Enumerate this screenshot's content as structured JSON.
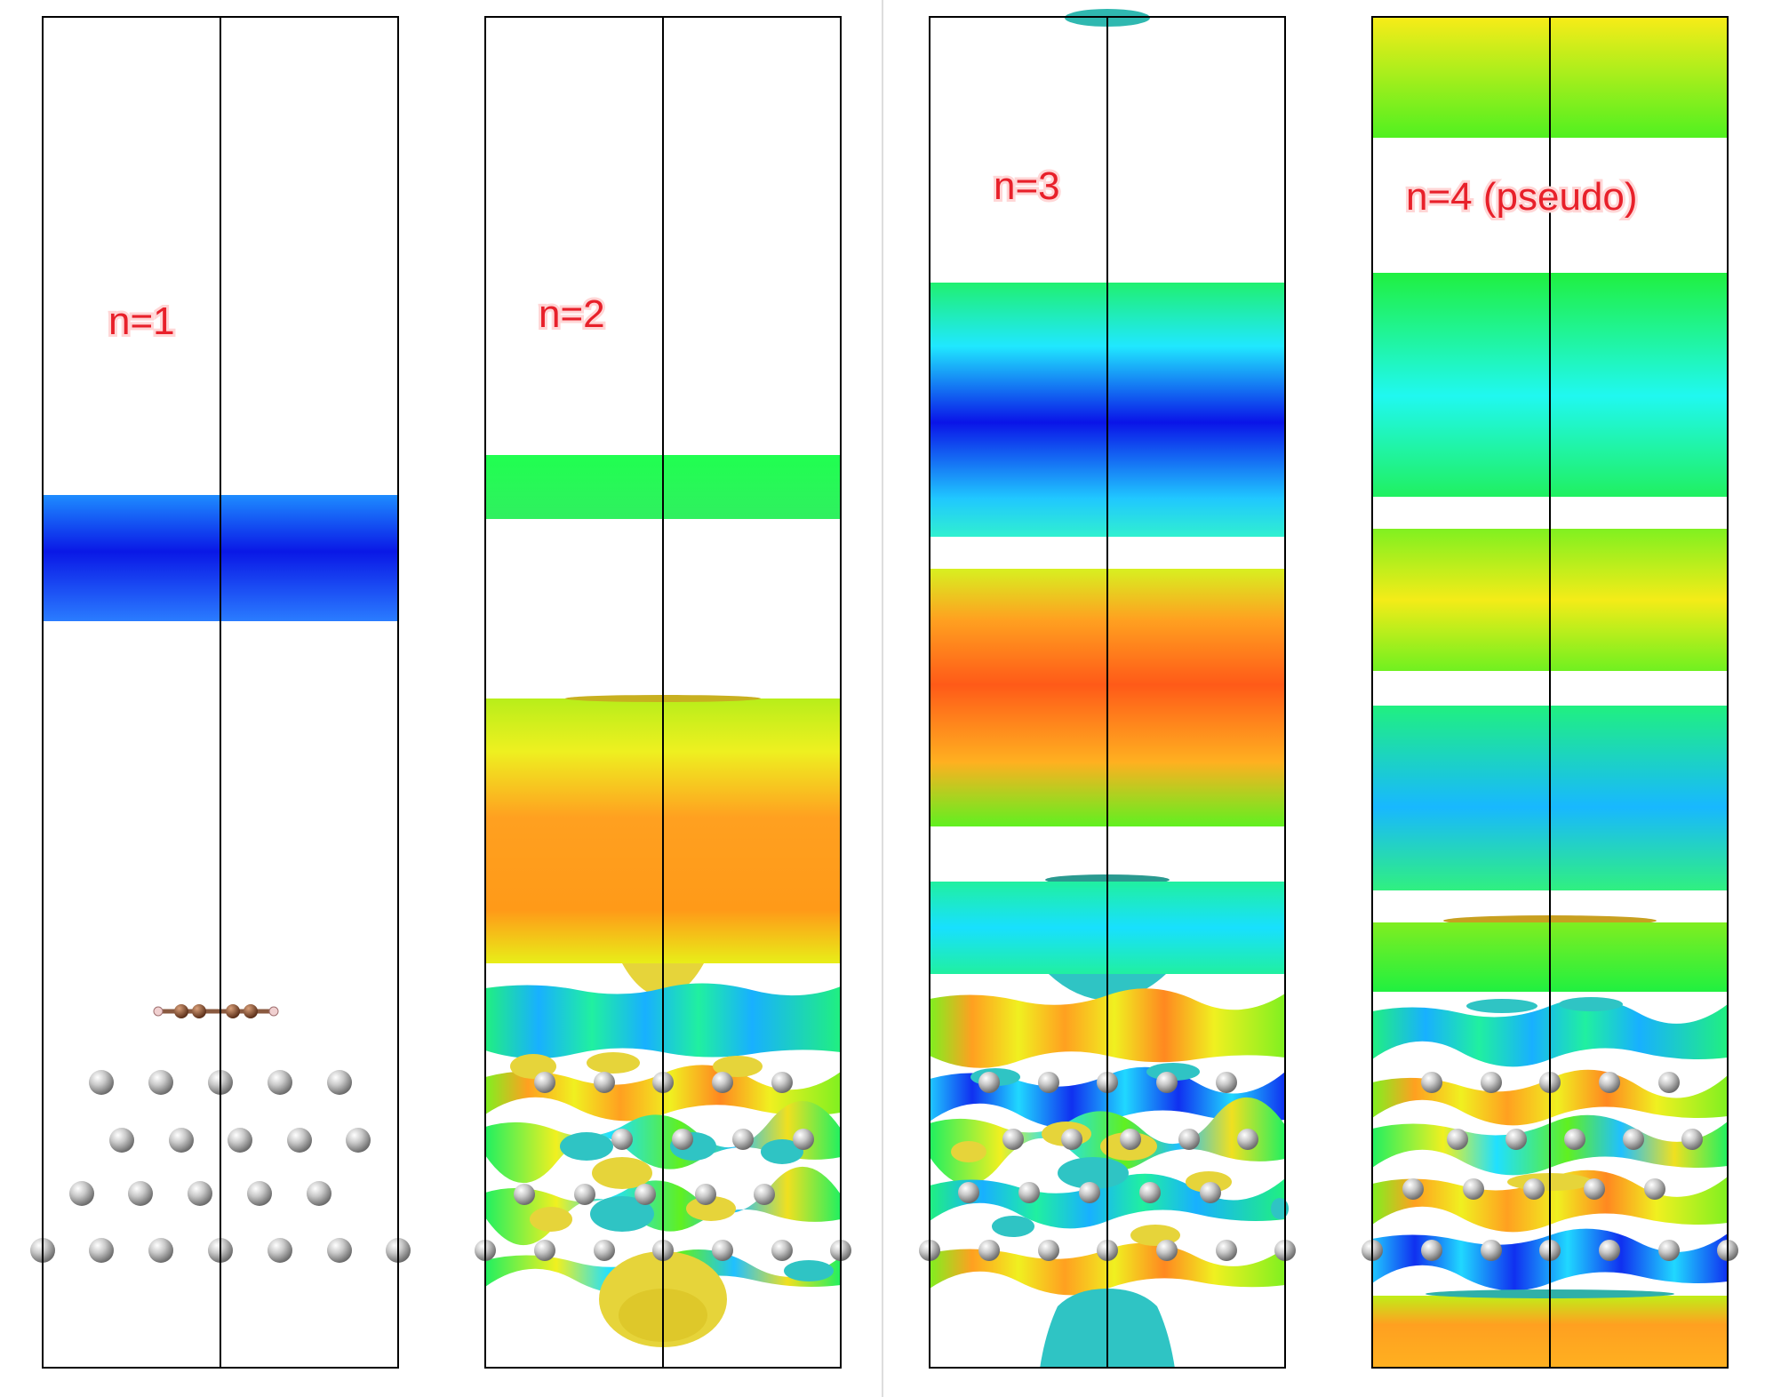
{
  "panels": [
    {
      "label": "n=1"
    },
    {
      "label": "n=2"
    },
    {
      "label": "n=3"
    },
    {
      "label": "n=4 (pseudo)"
    }
  ],
  "colors": {
    "frame": "#000000",
    "label_text": "#e8202a",
    "atom": "#b9b9b9",
    "carbon": "#7a4a30",
    "isosurface_positive": "#e6d43a",
    "isosurface_negative": "#2fc4c4",
    "separator": "#dddddd"
  },
  "icons": {
    "atom": "metal-atom-icon",
    "molecule": "molecule-icon"
  }
}
